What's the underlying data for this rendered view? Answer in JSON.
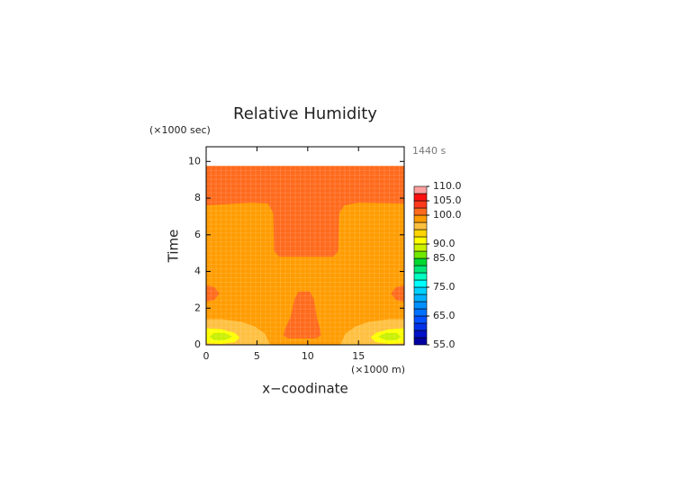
{
  "chart_data": {
    "type": "contour",
    "title": "Relative Humidity",
    "x_label": "x−coodinate",
    "y_label": "Time",
    "x_unit": "(×1000 m)",
    "y_unit": "(×1000 sec)",
    "time_label": "1440 s",
    "xlim": [
      0,
      19.5
    ],
    "ylim": [
      0,
      10.8
    ],
    "xticks": [
      0,
      5,
      10,
      15
    ],
    "yticks": [
      0,
      2,
      4,
      6,
      8,
      10
    ],
    "data_top": 9.75,
    "colorbar": {
      "levels": [
        55,
        57.5,
        60,
        62.5,
        65,
        67.5,
        70,
        72.5,
        75,
        77.5,
        80,
        82.5,
        85,
        87.5,
        90,
        92.5,
        95,
        97.5,
        100,
        102.5,
        105,
        107.5,
        110
      ],
      "colors": [
        "#0000a0",
        "#0010c8",
        "#0030e8",
        "#0050ff",
        "#0070ff",
        "#0090ff",
        "#00b0ff",
        "#00d0ff",
        "#00ffff",
        "#00ffc0",
        "#00e878",
        "#00d830",
        "#70e800",
        "#c8f000",
        "#ffff00",
        "#ffd400",
        "#ffc040",
        "#ff9c00",
        "#ff6a1c",
        "#ff3a1c",
        "#ff1010",
        "#ffa0a0"
      ],
      "ticks": [
        {
          "value": 55,
          "label": "55.0"
        },
        {
          "value": 65,
          "label": "65.0"
        },
        {
          "value": 75,
          "label": "75.0"
        },
        {
          "value": 85,
          "label": "85.0"
        },
        {
          "value": 90,
          "label": "90.0"
        },
        {
          "value": 100,
          "label": "100.0"
        },
        {
          "value": 105,
          "label": "105.0"
        },
        {
          "value": 110,
          "label": "110.0"
        }
      ]
    },
    "regions": [
      {
        "value": 97.5,
        "points": [
          [
            0,
            0
          ],
          [
            19.5,
            0
          ],
          [
            19.5,
            9.75
          ],
          [
            0,
            9.75
          ]
        ]
      },
      {
        "value": 100,
        "points": [
          [
            0,
            9.75
          ],
          [
            19.5,
            9.75
          ],
          [
            19.5,
            7.7
          ],
          [
            15,
            7.75
          ],
          [
            13.6,
            7.6
          ],
          [
            13.1,
            7.2
          ],
          [
            13,
            5.1
          ],
          [
            12.5,
            4.8
          ],
          [
            7.2,
            4.8
          ],
          [
            6.7,
            5.1
          ],
          [
            6.6,
            7.2
          ],
          [
            6.1,
            7.7
          ],
          [
            4.5,
            7.75
          ],
          [
            0,
            7.6
          ]
        ]
      },
      {
        "value": 100,
        "points": [
          [
            0,
            2.35
          ],
          [
            0.8,
            2.45
          ],
          [
            1.3,
            2.8
          ],
          [
            0.8,
            3.15
          ],
          [
            0,
            3.25
          ]
        ]
      },
      {
        "value": 100,
        "points": [
          [
            19.5,
            2.35
          ],
          [
            18.7,
            2.45
          ],
          [
            18.2,
            2.8
          ],
          [
            18.7,
            3.15
          ],
          [
            19.5,
            3.25
          ]
        ]
      },
      {
        "value": 100,
        "points": [
          [
            7.6,
            0.5
          ],
          [
            7.8,
            0.9
          ],
          [
            8.3,
            1.5
          ],
          [
            8.7,
            2.5
          ],
          [
            9.1,
            2.9
          ],
          [
            10.2,
            2.9
          ],
          [
            10.6,
            2.5
          ],
          [
            10.9,
            1.5
          ],
          [
            11.2,
            0.9
          ],
          [
            11.3,
            0.5
          ],
          [
            10.8,
            0.35
          ],
          [
            8.1,
            0.35
          ]
        ]
      },
      {
        "value": 95,
        "points": [
          [
            0,
            0
          ],
          [
            6.3,
            0
          ],
          [
            5.8,
            0.6
          ],
          [
            4.8,
            1.0
          ],
          [
            3.5,
            1.25
          ],
          [
            1.5,
            1.4
          ],
          [
            0,
            1.4
          ]
        ]
      },
      {
        "value": 95,
        "points": [
          [
            19.5,
            0
          ],
          [
            13.2,
            0
          ],
          [
            13.7,
            0.6
          ],
          [
            14.7,
            1.0
          ],
          [
            16,
            1.25
          ],
          [
            18,
            1.4
          ],
          [
            19.5,
            1.4
          ]
        ]
      },
      {
        "value": 90,
        "points": [
          [
            0,
            0.1
          ],
          [
            0,
            0.9
          ],
          [
            1.5,
            0.85
          ],
          [
            2.8,
            0.65
          ],
          [
            3.3,
            0.4
          ],
          [
            2.8,
            0.15
          ],
          [
            1.5,
            0.05
          ]
        ]
      },
      {
        "value": 90,
        "points": [
          [
            19.5,
            0.1
          ],
          [
            19.5,
            0.9
          ],
          [
            18,
            0.85
          ],
          [
            16.7,
            0.65
          ],
          [
            16.2,
            0.4
          ],
          [
            16.7,
            0.15
          ],
          [
            18,
            0.05
          ]
        ]
      },
      {
        "value": 87.5,
        "points": [
          [
            0.3,
            0.45
          ],
          [
            0.8,
            0.65
          ],
          [
            1.8,
            0.65
          ],
          [
            2.6,
            0.45
          ],
          [
            1.8,
            0.25
          ],
          [
            0.8,
            0.25
          ]
        ]
      },
      {
        "value": 87.5,
        "points": [
          [
            19.2,
            0.45
          ],
          [
            18.7,
            0.65
          ],
          [
            17.7,
            0.65
          ],
          [
            16.9,
            0.45
          ],
          [
            17.7,
            0.25
          ],
          [
            18.7,
            0.25
          ]
        ]
      }
    ]
  }
}
